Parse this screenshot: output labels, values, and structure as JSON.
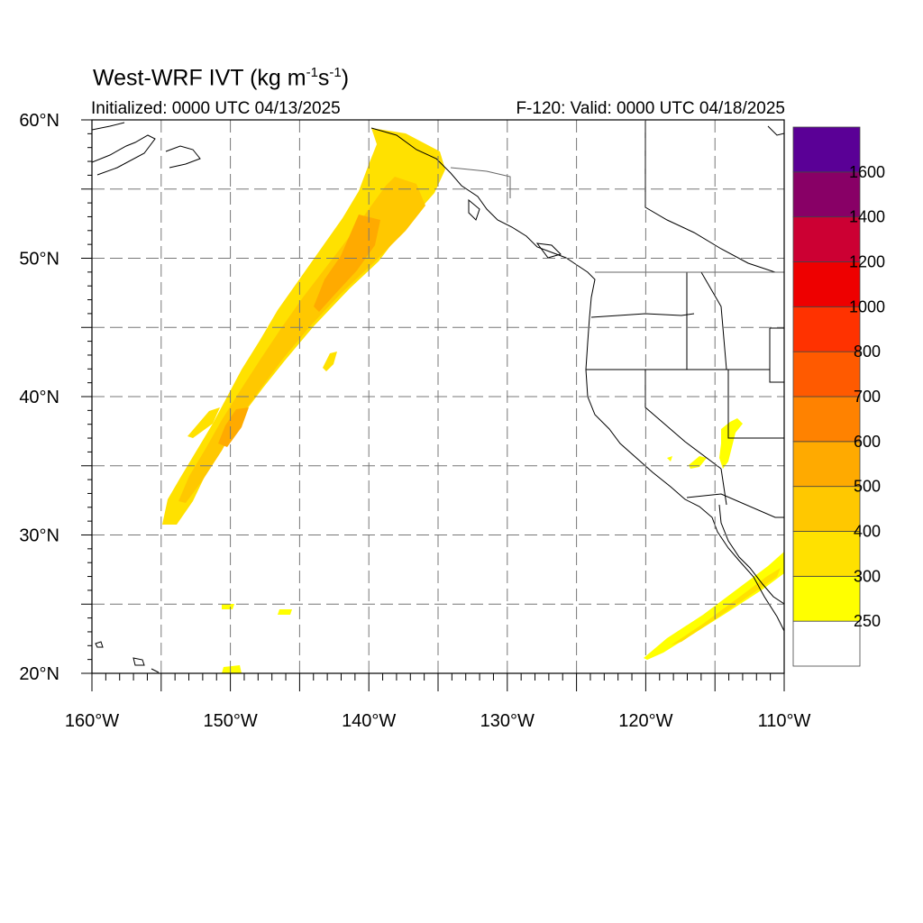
{
  "header": {
    "title_main": "West-WRF IVT (kg m",
    "title_sup1": "-1",
    "title_mid": "s",
    "title_sup2": "-1",
    "title_end": ")",
    "initialized": "Initialized: 0000 UTC 04/13/2025",
    "valid": "F-120: Valid: 0000 UTC 04/18/2025"
  },
  "map": {
    "lon_range": [
      -160,
      -110
    ],
    "lat_range": [
      20,
      60
    ],
    "lon_labels": [
      "160°W",
      "150°W",
      "140°W",
      "130°W",
      "120°W",
      "110°W"
    ],
    "lat_labels": [
      "20°N",
      "30°N",
      "40°N",
      "50°N",
      "60°N"
    ],
    "grid": "dashed every 5 degrees",
    "features": [
      "ivt-plume-northeast-pacific",
      "ivt-plume-baja-california",
      "ivt-patch-great-basin"
    ]
  },
  "colorbar": {
    "labels": [
      "250",
      "300",
      "400",
      "500",
      "600",
      "700",
      "800",
      "1000",
      "1200",
      "1400",
      "1600"
    ],
    "colors": [
      "#ffffff",
      "#ffff00",
      "#ffe100",
      "#ffc800",
      "#ffaa00",
      "#ff8200",
      "#ff5a00",
      "#ff3200",
      "#ee0000",
      "#cc0033",
      "#880066",
      "#5a0096"
    ]
  }
}
